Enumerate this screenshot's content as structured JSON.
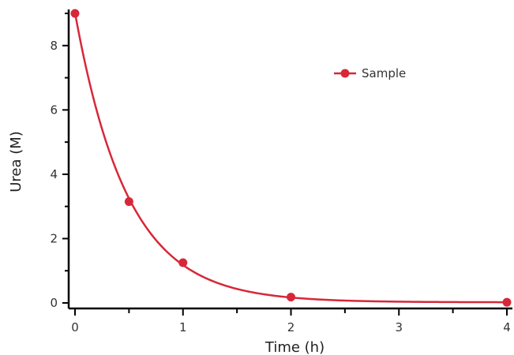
{
  "chart_data": {
    "type": "scatter",
    "title": "",
    "xlabel": "Time (h)",
    "ylabel": "Urea (M)",
    "xlim": [
      0,
      4
    ],
    "ylim": [
      0,
      9
    ],
    "x_ticks": [
      "0",
      "1",
      "2",
      "3",
      "4"
    ],
    "y_ticks": [
      "0",
      "2",
      "4",
      "6",
      "8"
    ],
    "grid": false,
    "legend_position": "top-right",
    "series": [
      {
        "name": "Sample",
        "color": "#d62839",
        "points": [
          {
            "x": 0,
            "y": 9.0
          },
          {
            "x": 0.5,
            "y": 3.15
          },
          {
            "x": 1,
            "y": 1.25
          },
          {
            "x": 2,
            "y": 0.18
          },
          {
            "x": 4,
            "y": 0.02
          }
        ],
        "fit_curve": {
          "model": "exponential decay",
          "a": 9.0,
          "k": 2.05,
          "c": 0.02
        }
      }
    ]
  }
}
